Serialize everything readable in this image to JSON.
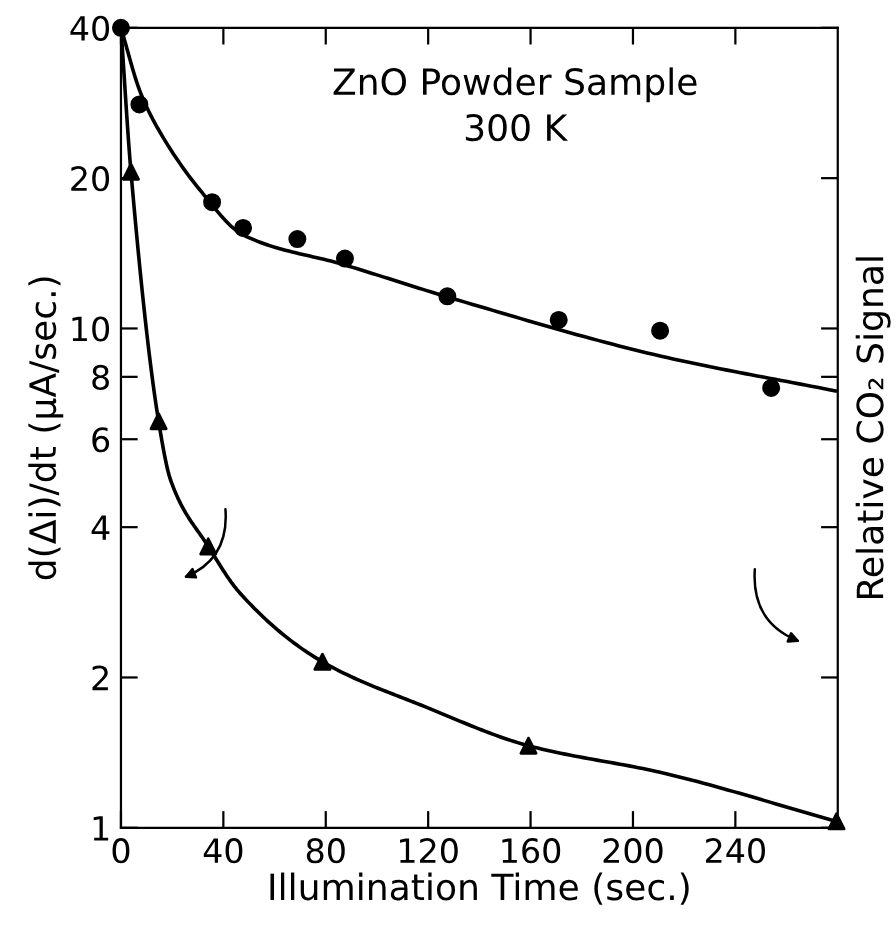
{
  "chart_data": {
    "type": "scatter",
    "title": "ZnO Powder Sample\n300 K",
    "xlabel": "Illumination Time (sec.)",
    "ylabel": "d(Δi)/dt (μA/sec.)",
    "y2label": "Relative CO₂ Signal",
    "series": [
      {
        "marker": "circle",
        "color": "#000000",
        "x": [
          0,
          7.2,
          35.6,
          47.7,
          68.9,
          87.5,
          127.5,
          171,
          210.6,
          254
        ],
        "values": [
          40,
          28.1,
          17.9,
          15.9,
          15.1,
          13.8,
          11.6,
          10.4,
          9.9,
          7.6
        ]
      },
      {
        "type": "line",
        "marker": "none",
        "color": "#000000",
        "x": [
          0,
          7.7,
          15.5,
          31,
          47.7,
          87.5,
          131.6,
          211,
          279
        ],
        "values": [
          40,
          29.6,
          24.6,
          18.9,
          15.4,
          13.4,
          11.4,
          8.8,
          7.5
        ]
      },
      {
        "marker": "triangle",
        "color": "#000000",
        "x": [
          3.9,
          14.7,
          34.1,
          78.7,
          159.2,
          279.5
        ],
        "values": [
          20.6,
          6.52,
          3.66,
          2.15,
          1.46,
          1.03
        ]
      },
      {
        "type": "line",
        "marker": "none",
        "color": "#000000",
        "x": [
          0,
          3.9,
          14.7,
          19.4,
          34.1,
          46.5,
          78.7,
          118.5,
          159.2,
          211,
          279.5
        ],
        "values": [
          40,
          20.6,
          6.52,
          4.97,
          3.66,
          2.95,
          2.15,
          1.75,
          1.46,
          1.29,
          1.03
        ]
      }
    ],
    "log": "y",
    "xlim": [
      0,
      280
    ],
    "ylim": [
      1,
      40
    ],
    "xticks": [
      0,
      40,
      80,
      120,
      160,
      200,
      240
    ],
    "yticks": [
      1,
      2,
      4,
      6,
      8,
      10,
      20,
      40
    ],
    "grid": false,
    "legend": false
  }
}
